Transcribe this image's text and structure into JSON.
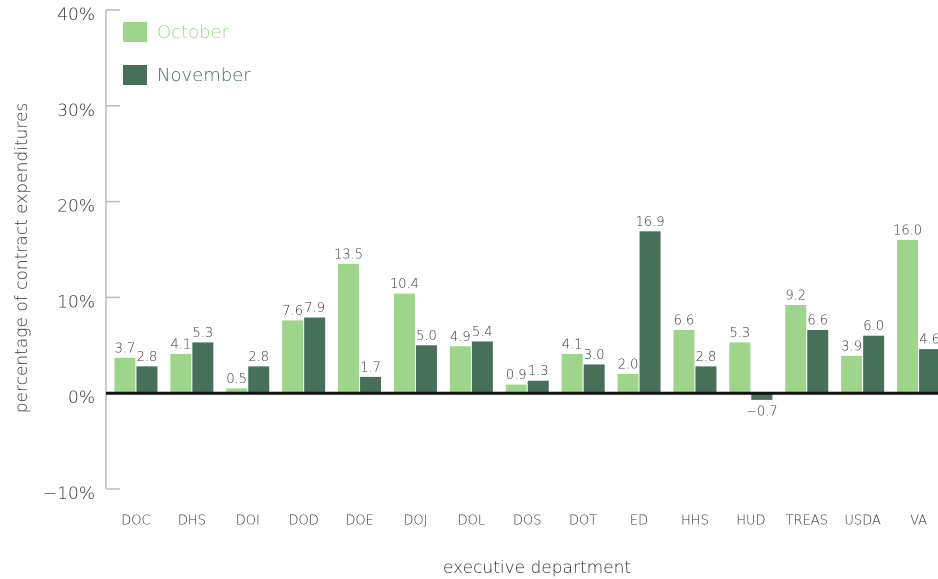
{
  "chart_data": {
    "type": "bar",
    "xlabel": "executive department",
    "ylabel": "percentage of contract expenditures",
    "categories": [
      "DOC",
      "DHS",
      "DOI",
      "DOD",
      "DOE",
      "DOJ",
      "DOL",
      "DOS",
      "DOT",
      "ED",
      "HHS",
      "HUD",
      "TREAS",
      "USDA",
      "VA"
    ],
    "series": [
      {
        "name": "October",
        "color": "#9dd68a",
        "values": [
          3.7,
          4.1,
          0.5,
          7.6,
          13.5,
          10.4,
          4.9,
          0.9,
          4.1,
          2.0,
          6.6,
          5.3,
          9.2,
          3.9,
          16.0
        ],
        "value_labels": [
          "3.7",
          "4.1",
          "0.5",
          "7.6",
          "13.5",
          "10.4",
          "4.9",
          "0.9",
          "4.1",
          "2.0",
          "6.6",
          "5.3",
          "9.2",
          "3.9",
          "16.0"
        ]
      },
      {
        "name": "November",
        "color": "#47705a",
        "values": [
          2.8,
          5.3,
          2.8,
          7.9,
          1.7,
          5.0,
          5.4,
          1.3,
          3.0,
          16.9,
          2.8,
          -0.7,
          6.6,
          6.0,
          4.6
        ],
        "value_labels": [
          "2.8",
          "5.3",
          "2.8",
          "7.9",
          "1.7",
          "5.0",
          "5.4",
          "1.3",
          "3.0",
          "16.9",
          "2.8",
          "−0.7",
          "6.6",
          "6.0",
          "4.6"
        ]
      }
    ],
    "ylim": [
      -10,
      40
    ],
    "yticks": [
      {
        "value": -10,
        "label": "−10%"
      },
      {
        "value": 0,
        "label": "0%"
      },
      {
        "value": 10,
        "label": "10%"
      },
      {
        "value": 20,
        "label": "20%"
      },
      {
        "value": 30,
        "label": "30%"
      },
      {
        "value": 40,
        "label": "40%"
      }
    ],
    "legend": "upper left"
  }
}
